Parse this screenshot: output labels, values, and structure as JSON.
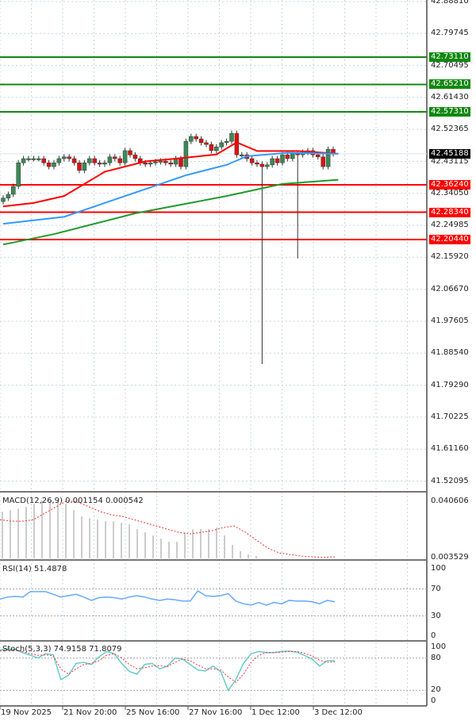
{
  "chart_data": {
    "type": "candlestick",
    "price_axis": {
      "ticks": [
        "42.88810",
        "42.79745",
        "42.70495",
        "42.61430",
        "42.52365",
        "42.43115",
        "42.34050",
        "42.24985",
        "42.15920",
        "42.06670",
        "41.97605",
        "41.88540",
        "41.79290",
        "41.70225",
        "41.61160",
        "41.52095"
      ]
    },
    "time_axis": {
      "ticks": [
        "19 Nov 2025",
        "21 Nov 20:00",
        "25 Nov 16:00",
        "27 Nov 16:00",
        "1 Dec 12:00",
        "3 Dec 12:00"
      ]
    },
    "closes": [
      42.324,
      42.335,
      42.358,
      42.426,
      42.438,
      42.438,
      42.438,
      42.438,
      42.426,
      42.415,
      42.426,
      42.438,
      42.443,
      42.438,
      42.426,
      42.404,
      42.426,
      42.438,
      42.426,
      42.422,
      42.426,
      42.443,
      42.438,
      42.426,
      42.461,
      42.449,
      42.438,
      42.426,
      42.422,
      42.426,
      42.429,
      42.431,
      42.426,
      42.422,
      42.438,
      42.415,
      42.488,
      42.502,
      42.495,
      42.484,
      42.479,
      42.461,
      42.472,
      42.484,
      42.488,
      42.511,
      42.449,
      42.449,
      42.438,
      42.426,
      42.422,
      42.415,
      42.42,
      42.438,
      42.426,
      42.449,
      42.438,
      42.454,
      42.449,
      42.456,
      42.461,
      42.449,
      42.443,
      42.415,
      42.465,
      42.452
    ],
    "long_lower_wicks": [
      {
        "index": 51,
        "low": 41.845
      },
      {
        "index": 58,
        "low": 42.15
      }
    ],
    "moving_averages": [
      {
        "color": "#ff0000",
        "points": [
          [
            0,
            42.3
          ],
          [
            6,
            42.31
          ],
          [
            12,
            42.33
          ],
          [
            20,
            42.4
          ],
          [
            28,
            42.43
          ],
          [
            34,
            42.438
          ],
          [
            42,
            42.45
          ],
          [
            46,
            42.485
          ],
          [
            50,
            42.46
          ],
          [
            58,
            42.46
          ],
          [
            66,
            42.452
          ]
        ]
      },
      {
        "color": "#3399ff",
        "points": [
          [
            0,
            42.25
          ],
          [
            12,
            42.27
          ],
          [
            30,
            42.36
          ],
          [
            36,
            42.39
          ],
          [
            44,
            42.42
          ],
          [
            48,
            42.445
          ],
          [
            56,
            42.455
          ],
          [
            66,
            42.452
          ]
        ]
      },
      {
        "color": "#22992b",
        "points": [
          [
            0,
            42.19
          ],
          [
            10,
            42.22
          ],
          [
            26,
            42.28
          ],
          [
            44,
            42.33
          ],
          [
            55,
            42.365
          ],
          [
            66,
            42.377
          ]
        ]
      }
    ],
    "resistance_levels": [
      "42.73110",
      "42.65210",
      "42.57310"
    ],
    "support_levels": [
      "42.36240",
      "42.28340",
      "42.20440"
    ],
    "current_price": "42.45188",
    "colors": {
      "bull": "#3b8a55",
      "bear": "#e01010",
      "resistance": "#118811",
      "support": "#ff0000",
      "current": "#000000"
    },
    "macd": {
      "label": "MACD(12,26,9) 0.001154 0.000542",
      "axis": [
        "0.040606",
        "0.003529"
      ],
      "histogram": [
        0.033,
        0.034,
        0.035,
        0.036,
        0.038,
        0.04,
        0.04,
        0.04,
        0.038,
        0.034,
        0.03,
        0.029,
        0.028,
        0.027,
        0.027,
        0.026,
        0.025,
        0.022,
        0.02,
        0.018,
        0.016,
        0.014,
        0.014,
        0.02,
        0.022,
        0.022,
        0.022,
        0.023,
        0.018,
        0.012,
        0.008,
        0.006,
        0.005
      ],
      "signal": [
        0.028,
        0.027,
        0.027,
        0.028,
        0.032,
        0.036,
        0.04,
        0.039,
        0.036,
        0.033,
        0.031,
        0.03,
        0.028,
        0.026,
        0.024,
        0.022,
        0.02,
        0.019,
        0.02,
        0.021,
        0.023,
        0.024,
        0.02,
        0.015,
        0.01,
        0.007,
        0.006,
        0.005,
        0.0045,
        0.0042,
        0.0045
      ]
    },
    "rsi": {
      "label": "RSI(14) 51.4878",
      "axis": [
        "100",
        "70",
        "30",
        "0"
      ],
      "values": [
        55,
        58,
        59,
        58,
        66,
        66,
        66,
        62,
        58,
        60,
        62,
        58,
        53,
        57,
        58,
        57,
        55,
        58,
        60,
        58,
        55,
        53,
        55,
        54,
        52,
        52,
        67,
        60,
        59,
        60,
        63,
        52,
        48,
        46,
        50,
        46,
        50,
        48,
        53,
        52,
        52,
        51,
        48,
        53,
        51
      ]
    },
    "stoch": {
      "label": "Stoch(5,3,3) 74.9158 71.8079",
      "axis": [
        "100",
        "80",
        "20",
        "0"
      ],
      "k": [
        95,
        97,
        96,
        90,
        85,
        80,
        88,
        86,
        40,
        48,
        70,
        72,
        68,
        82,
        92,
        88,
        70,
        55,
        50,
        68,
        70,
        60,
        65,
        80,
        78,
        68,
        58,
        56,
        65,
        55,
        20,
        40,
        70,
        88,
        92,
        90,
        90,
        92,
        93,
        91,
        85,
        78,
        65,
        75,
        75
      ],
      "d": [
        93,
        95,
        95,
        92,
        88,
        85,
        86,
        84,
        60,
        50,
        60,
        68,
        70,
        75,
        85,
        88,
        80,
        68,
        60,
        62,
        65,
        66,
        64,
        72,
        78,
        75,
        67,
        60,
        60,
        58,
        45,
        35,
        50,
        72,
        85,
        90,
        90,
        91,
        92,
        92,
        89,
        84,
        76,
        72,
        73
      ]
    }
  }
}
